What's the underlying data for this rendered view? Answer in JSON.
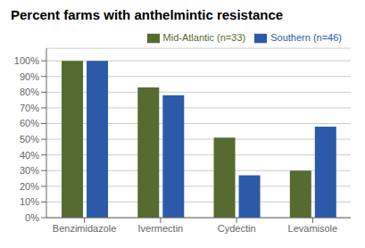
{
  "chart_data": {
    "type": "bar",
    "title": "Percent farms with anthelmintic resistance",
    "categories": [
      "Benzimidazole",
      "Ivermectin",
      "Cydectin",
      "Levamisole"
    ],
    "series": [
      {
        "name": "Mid-Atlantic (n=33)",
        "color": "#556B2F",
        "values": [
          100,
          83,
          51,
          30
        ]
      },
      {
        "name": "Southern (n=46)",
        "color": "#2B5BA8",
        "values": [
          100,
          78,
          27,
          58
        ]
      }
    ],
    "ylim": [
      0,
      108
    ],
    "yticks": [
      {
        "value": 0,
        "label": "0%"
      },
      {
        "value": 10,
        "label": "10%"
      },
      {
        "value": 20,
        "label": "20%"
      },
      {
        "value": 30,
        "label": "30%"
      },
      {
        "value": 40,
        "label": "40%"
      },
      {
        "value": 50,
        "label": "50%"
      },
      {
        "value": 60,
        "label": "60%"
      },
      {
        "value": 70,
        "label": "70%"
      },
      {
        "value": 80,
        "label": "80%"
      },
      {
        "value": 90,
        "label": "90%"
      },
      {
        "value": 100,
        "label": "100%"
      }
    ],
    "grid": true,
    "legend": "upper right"
  }
}
